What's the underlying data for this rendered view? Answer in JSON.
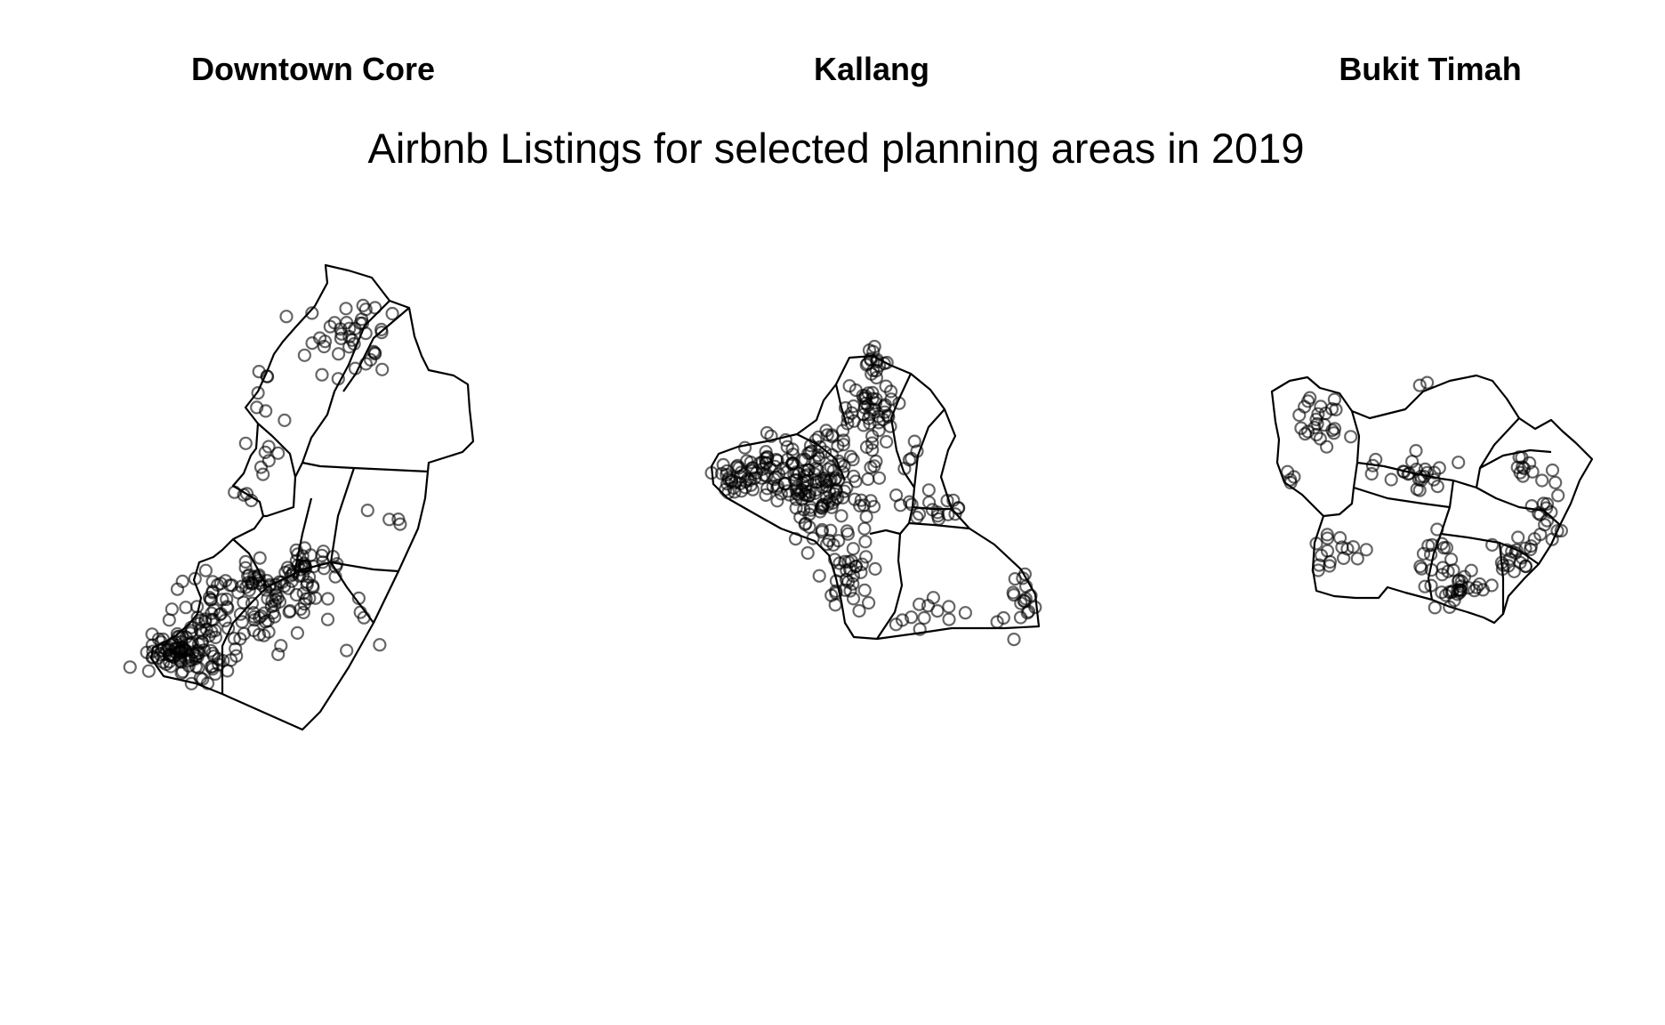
{
  "title": "Airbnb Listings for selected planning areas in 2019",
  "panels": [
    {
      "name": "Downtown Core"
    },
    {
      "name": "Kallang"
    },
    {
      "name": "Bukit Timah"
    }
  ],
  "style": {
    "point_color": "#000000",
    "point_opacity": 0.6,
    "boundary_color": "#000000",
    "background": "#ffffff"
  }
}
